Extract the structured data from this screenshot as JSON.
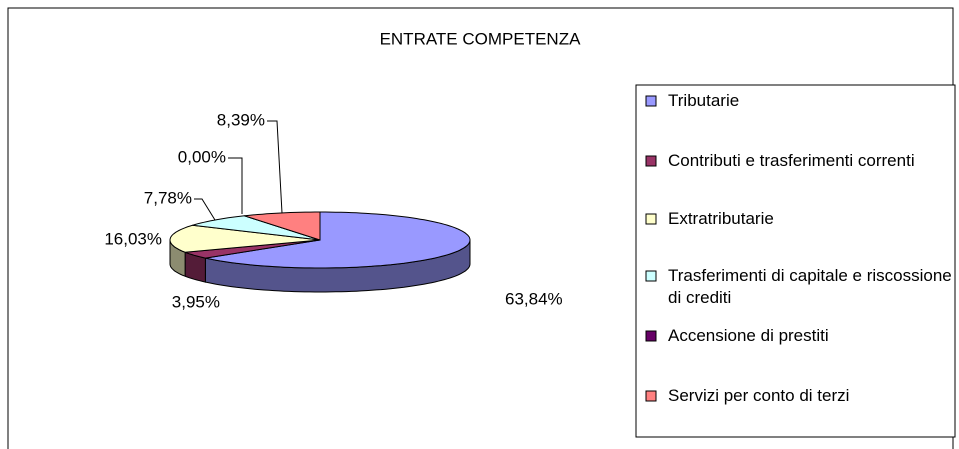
{
  "chart_data": {
    "type": "pie3d",
    "title": "ENTRATE COMPETENZA",
    "categories": [
      "Tributarie",
      "Contributi e trasferimenti correnti",
      "Extratributarie",
      "Trasferimenti di capitale e riscossione di crediti",
      "Accensione di prestiti",
      "Servizi per conto di terzi"
    ],
    "values": [
      63.84,
      3.95,
      16.03,
      7.78,
      0.0,
      8.39
    ],
    "value_labels": [
      "63,84%",
      "3,95%",
      "16,03%",
      "7,78%",
      "0,00%",
      "8,39%"
    ],
    "colors": [
      "#9999ff",
      "#993366",
      "#ffffcc",
      "#ccffff",
      "#660066",
      "#ff8080"
    ],
    "legend": "right"
  }
}
